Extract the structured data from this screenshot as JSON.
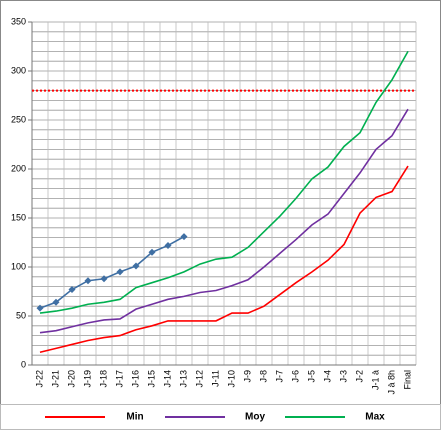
{
  "chart_data": {
    "type": "line",
    "categories": [
      "J-22",
      "J-21",
      "J-20",
      "J-19",
      "J-18",
      "J-17",
      "J-16",
      "J-15",
      "J-14",
      "J-13",
      "J-12",
      "J-11",
      "J-10",
      "J-9",
      "J-8",
      "J-7",
      "J-6",
      "J-5",
      "J-4",
      "J-3",
      "J-2",
      "J-1 à",
      "J à 8h",
      "Final"
    ],
    "series": [
      {
        "name": "Min",
        "color": "#ff0000",
        "values": [
          13,
          17,
          21,
          25,
          28,
          30,
          36,
          40,
          45,
          45,
          45,
          45,
          53,
          53,
          60,
          72,
          84,
          95,
          107,
          123,
          155,
          171,
          177,
          203
        ]
      },
      {
        "name": "Moy",
        "color": "#7030a0",
        "values": [
          33,
          35,
          39,
          43,
          46,
          47,
          57,
          62,
          67,
          70,
          74,
          76,
          81,
          87,
          100,
          114,
          128,
          143,
          154,
          175,
          196,
          220,
          234,
          261
        ]
      },
      {
        "name": "Max",
        "color": "#00b050",
        "values": [
          53,
          55,
          58,
          62,
          64,
          67,
          79,
          84,
          89,
          95,
          103,
          108,
          110,
          120,
          136,
          152,
          170,
          190,
          202,
          223,
          237,
          268,
          291,
          320
        ]
      },
      {
        "color": "#3f6fa3",
        "markers": true,
        "values": [
          58,
          64,
          77,
          86,
          88,
          95,
          101,
          115,
          122,
          131,
          null,
          null,
          null,
          null,
          null,
          null,
          null,
          null,
          null,
          null,
          null,
          null,
          null,
          null
        ]
      }
    ],
    "reference_line": {
      "value": 280,
      "color": "#ff0000",
      "style": "dotted"
    },
    "ylim": [
      0,
      350
    ],
    "yticks": [
      0,
      50,
      100,
      150,
      200,
      250,
      300,
      350
    ],
    "ygrid": [
      0,
      10,
      20,
      30,
      40,
      50,
      60,
      70,
      80,
      90,
      100,
      110,
      120,
      130,
      140,
      150,
      160,
      170,
      180,
      190,
      200,
      210,
      220,
      230,
      240,
      250,
      260,
      270,
      280,
      290,
      300,
      310,
      320,
      330,
      340,
      350
    ],
    "grid": true
  }
}
